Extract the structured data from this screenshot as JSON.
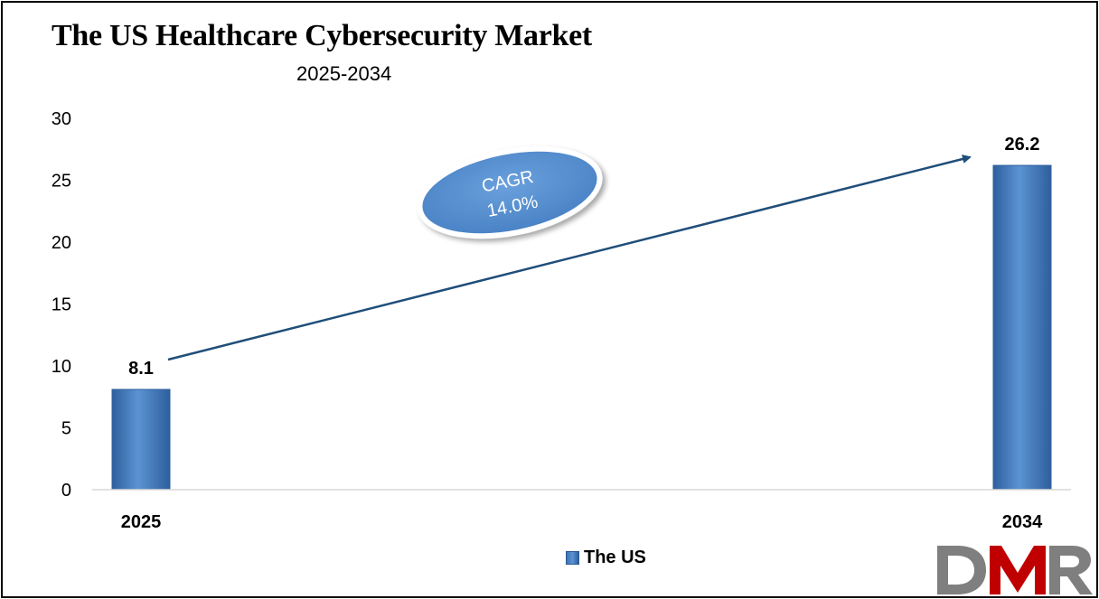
{
  "chart_data": {
    "type": "bar",
    "title": "The US Healthcare Cybersecurity Market",
    "subtitle": "2025-2034",
    "categories": [
      "2025",
      "2034"
    ],
    "series": [
      {
        "name": "The US",
        "values": [
          8.1,
          26.2
        ]
      }
    ],
    "data_labels": [
      "8.1",
      "26.2"
    ],
    "ylim": [
      0,
      30
    ],
    "yticks": [
      0,
      5,
      10,
      15,
      20,
      25,
      30
    ],
    "grid": false,
    "legend": "bottom-center",
    "annotation": {
      "line1": "CAGR",
      "line2": "14.0%"
    },
    "colors": {
      "bar": "#4a83c6",
      "bar_dark": "#2e5f9d",
      "arrow": "#1f4e79",
      "ellipse": "#5b93d3",
      "ellipse_text": "#ffffff"
    }
  },
  "logo": {
    "text": "DMR",
    "colors": {
      "d": "#7f7f7f",
      "m": "#c00000",
      "r": "#7f7f7f"
    }
  }
}
